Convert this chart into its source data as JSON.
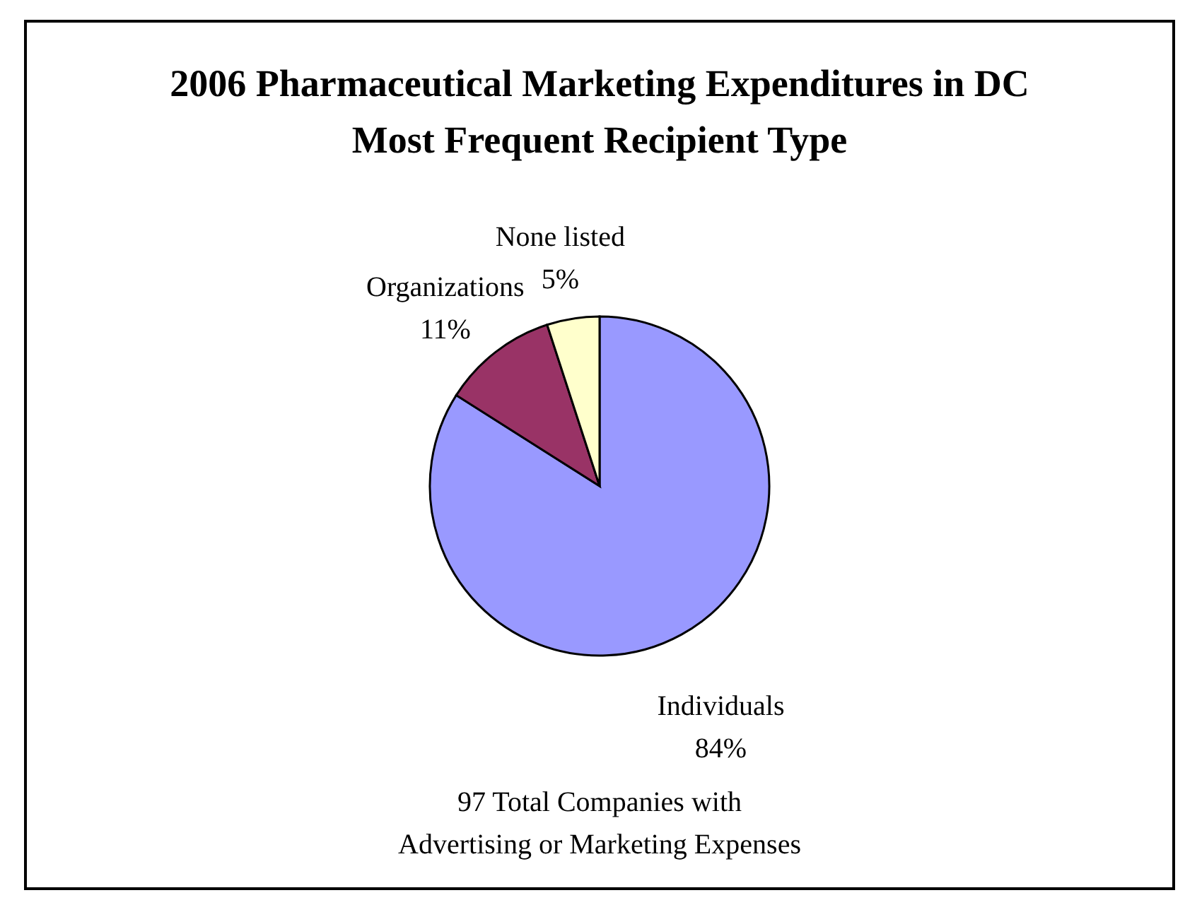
{
  "chart_data": {
    "type": "pie",
    "title": [
      "2006 Pharmaceutical Marketing Expenditures in DC",
      "Most Frequent Recipient Type"
    ],
    "categories": [
      "Individuals",
      "Organizations",
      "None listed"
    ],
    "values": [
      84,
      11,
      5
    ],
    "colors": [
      "#9999ff",
      "#993366",
      "#ffffcc"
    ],
    "value_labels": [
      "84%",
      "11%",
      "5%"
    ],
    "annotations": [
      "97 Total Companies with\nAdvertising or Marketing Expenses"
    ]
  }
}
